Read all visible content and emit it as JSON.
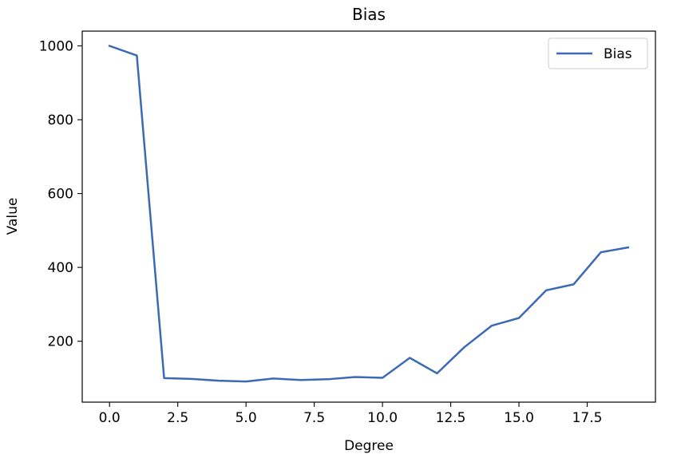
{
  "chart_data": {
    "type": "line",
    "title": "Bias",
    "xlabel": "Degree",
    "ylabel": "Value",
    "xlim": [
      -1.0,
      20.0
    ],
    "ylim": [
      35,
      1040
    ],
    "x_ticks": [
      0.0,
      2.5,
      5.0,
      7.5,
      10.0,
      12.5,
      15.0,
      17.5
    ],
    "x_tick_labels": [
      "0.0",
      "2.5",
      "5.0",
      "7.5",
      "10.0",
      "12.5",
      "15.0",
      "17.5"
    ],
    "y_ticks": [
      200,
      400,
      600,
      800,
      1000
    ],
    "y_tick_labels": [
      "200",
      "400",
      "600",
      "800",
      "1000"
    ],
    "grid": false,
    "legend_position": "top-right",
    "series": [
      {
        "name": "Bias",
        "color": "#3b6ab5",
        "x": [
          0,
          1,
          2,
          3,
          4,
          5,
          6,
          7,
          8,
          9,
          10,
          11,
          12,
          13,
          14,
          15,
          16,
          17,
          18,
          19
        ],
        "y": [
          1000,
          974,
          100,
          98,
          93,
          91,
          99,
          95,
          97,
          103,
          101,
          155,
          113,
          184,
          242,
          263,
          338,
          354,
          441,
          454
        ]
      }
    ]
  }
}
